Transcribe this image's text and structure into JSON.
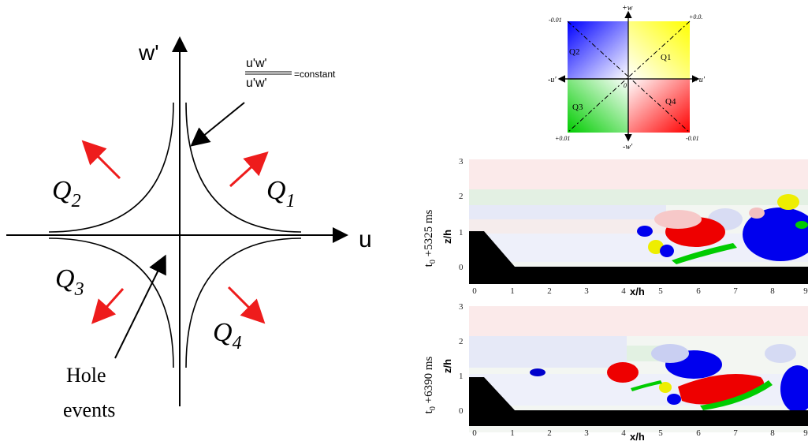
{
  "diagram": {
    "y_axis_label": "w'",
    "x_axis_label": "u'",
    "ratio_numerator": "u'w'",
    "ratio_denominator": "u'w'",
    "ratio_suffix": "=constant",
    "quadrants": [
      {
        "letter": "Q",
        "sub": "1"
      },
      {
        "letter": "Q",
        "sub": "2"
      },
      {
        "letter": "Q",
        "sub": "3"
      },
      {
        "letter": "Q",
        "sub": "4"
      }
    ],
    "hole_line1": "Hole",
    "hole_line2": "events",
    "arrow_color": "#ee1c1c"
  },
  "legend": {
    "top": "+w",
    "bottom": "-w'",
    "left": "-u'",
    "right": "+u'",
    "origin": "0",
    "corner_tl": "-0.01",
    "corner_tr": "+0.0.",
    "corner_bl": "+0.01",
    "corner_br": "-0.01",
    "q1": "Q1",
    "q2": "Q2",
    "q3": "Q3",
    "q4": "Q4",
    "colors": {
      "q1": "#ffff00",
      "q2": "#0000ff",
      "q3": "#00cc00",
      "q4": "#ff0000"
    }
  },
  "plots": [
    {
      "time_label": "t0 +5325 ms",
      "time_t": "t",
      "time_sub": "0",
      "time_rest": " +5325 ms",
      "ylabel": "z/h",
      "xlabel": "x/h",
      "yticks": [
        "3",
        "2",
        "1",
        "0"
      ],
      "xticks": [
        "0",
        "1",
        "2",
        "3",
        "4",
        "5",
        "6",
        "7",
        "8",
        "9"
      ]
    },
    {
      "time_label": "t0 +6390 ms",
      "time_t": "t",
      "time_sub": "0",
      "time_rest": " +6390 ms",
      "ylabel": "z/h",
      "xlabel": "x/h",
      "yticks": [
        "3",
        "2",
        "1",
        "0"
      ],
      "xticks": [
        "0",
        "1",
        "2",
        "3",
        "4",
        "5",
        "6",
        "7",
        "8",
        "9"
      ]
    }
  ]
}
